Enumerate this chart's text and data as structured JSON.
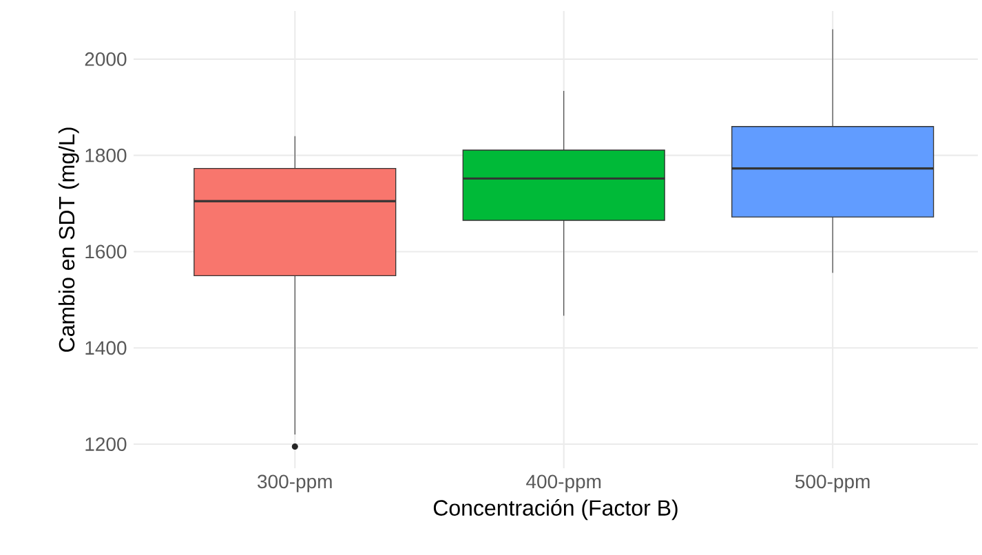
{
  "chart_data": {
    "type": "box",
    "xlabel": "Concentración (Factor B)",
    "ylabel": "Cambio en SDT (mg/L)",
    "categories": [
      "300-ppm",
      "400-ppm",
      "500-ppm"
    ],
    "colors": [
      "#f8766d",
      "#00ba38",
      "#619cff"
    ],
    "boxes": [
      {
        "low": 1220,
        "q1": 1550,
        "median": 1705,
        "q3": 1773,
        "high": 1840,
        "outliers": [
          1195
        ]
      },
      {
        "low": 1467,
        "q1": 1665,
        "median": 1752,
        "q3": 1811,
        "high": 1934
      },
      {
        "low": 1556,
        "q1": 1672,
        "median": 1773,
        "q3": 1860,
        "high": 2062
      }
    ],
    "ylim": [
      1150,
      2100
    ],
    "yticks": [
      1200,
      1400,
      1600,
      1800,
      2000
    ],
    "grid": true
  }
}
